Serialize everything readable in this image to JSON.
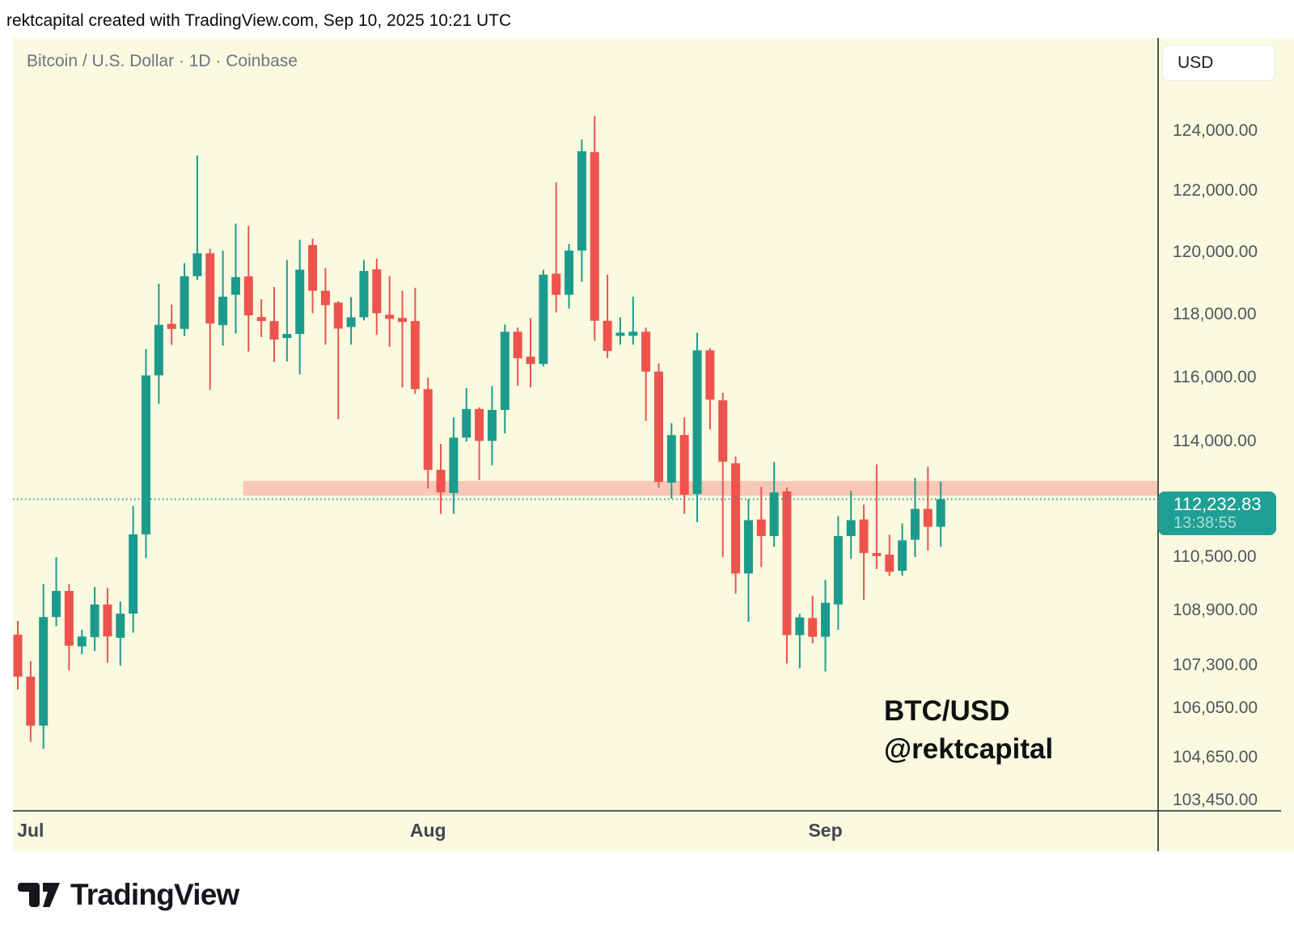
{
  "header": {
    "caption": "rektcapital created with TradingView.com, Sep 10, 2025 10:21 UTC"
  },
  "chart": {
    "title": "Bitcoin / U.S. Dollar · 1D · Coinbase",
    "currency_button_label": "USD",
    "badge_price": "112,232.83",
    "badge_countdown": "13:38:55",
    "watermark_line1": "BTC/USD",
    "watermark_line2": "@rektcapital",
    "colors": {
      "background": "#fafae1",
      "up": "#1c9b8d",
      "down": "#ee534e",
      "support_zone": "#f8c7b6",
      "badge": "#20a094",
      "badge_countdown_text": "#a7dcd5",
      "axis_text": "#50545c",
      "month_text": "#42464e",
      "title_text": "#6e7380",
      "border": "#262b33",
      "watermark_text": "#101113"
    }
  },
  "footer": {
    "logo_text": "TradingView"
  },
  "chart_data": {
    "type": "candlestick",
    "title": "Bitcoin / U.S. Dollar · 1D · Coinbase",
    "symbol": "BTC/USD",
    "interval": "1D",
    "exchange": "Coinbase",
    "scale": "logarithmic",
    "current_price": 112232.83,
    "countdown": "13:38:55",
    "columns": [
      "date",
      "open",
      "high",
      "low",
      "close"
    ],
    "candles": [
      [
        "2025-06-30",
        108190,
        108600,
        106600,
        106970
      ],
      [
        "2025-07-01",
        106970,
        107420,
        105100,
        105560
      ],
      [
        "2025-07-02",
        105560,
        109690,
        104900,
        108710
      ],
      [
        "2025-07-03",
        108710,
        110490,
        108440,
        109480
      ],
      [
        "2025-07-04",
        109480,
        109690,
        107150,
        107870
      ],
      [
        "2025-07-05",
        107850,
        108330,
        107620,
        108140
      ],
      [
        "2025-07-06",
        108120,
        109600,
        107710,
        109080
      ],
      [
        "2025-07-07",
        109080,
        109570,
        107380,
        108140
      ],
      [
        "2025-07-08",
        108100,
        109170,
        107290,
        108810
      ],
      [
        "2025-07-09",
        108810,
        112030,
        108250,
        111170
      ],
      [
        "2025-07-10",
        111170,
        116890,
        110460,
        116060
      ],
      [
        "2025-07-11",
        116060,
        118980,
        115170,
        117660
      ],
      [
        "2025-07-12",
        117690,
        118310,
        117020,
        117530
      ],
      [
        "2025-07-13",
        117530,
        119640,
        117300,
        119220
      ],
      [
        "2025-07-14",
        119220,
        123180,
        119100,
        119960
      ],
      [
        "2025-07-15",
        119960,
        120100,
        115610,
        117700
      ],
      [
        "2025-07-16",
        117650,
        120050,
        117000,
        118560
      ],
      [
        "2025-07-17",
        118620,
        120930,
        117380,
        119190
      ],
      [
        "2025-07-18",
        119215,
        120850,
        116810,
        117960
      ],
      [
        "2025-07-19",
        117910,
        118480,
        117270,
        117780
      ],
      [
        "2025-07-20",
        117780,
        118870,
        116480,
        117190
      ],
      [
        "2025-07-21",
        117240,
        119740,
        116500,
        117370
      ],
      [
        "2025-07-22",
        117370,
        120400,
        116090,
        119430
      ],
      [
        "2025-07-23",
        120230,
        120440,
        118030,
        118750
      ],
      [
        "2025-07-24",
        118750,
        119480,
        117030,
        118290
      ],
      [
        "2025-07-25",
        118370,
        118420,
        114690,
        117540
      ],
      [
        "2025-07-26",
        117590,
        118550,
        117030,
        117900
      ],
      [
        "2025-07-27",
        117900,
        119740,
        117800,
        119390
      ],
      [
        "2025-07-28",
        119440,
        119790,
        117340,
        118030
      ],
      [
        "2025-07-29",
        117980,
        119220,
        116960,
        117850
      ],
      [
        "2025-07-30",
        117880,
        118750,
        115680,
        117750
      ],
      [
        "2025-07-31",
        117780,
        118850,
        115480,
        115630
      ],
      [
        "2025-08-01",
        115630,
        115990,
        112560,
        113130
      ],
      [
        "2025-08-02",
        113130,
        113930,
        111790,
        112440
      ],
      [
        "2025-08-03",
        112420,
        114750,
        111790,
        114120
      ],
      [
        "2025-08-04",
        114120,
        115670,
        114000,
        115010
      ],
      [
        "2025-08-05",
        115010,
        115060,
        112820,
        114020
      ],
      [
        "2025-08-06",
        114020,
        115720,
        113270,
        114980
      ],
      [
        "2025-08-07",
        114980,
        117670,
        114250,
        117440
      ],
      [
        "2025-08-08",
        117440,
        117570,
        115730,
        116600
      ],
      [
        "2025-08-09",
        116650,
        117880,
        115680,
        116420
      ],
      [
        "2025-08-10",
        116420,
        119430,
        116340,
        119270
      ],
      [
        "2025-08-11",
        119300,
        122290,
        118050,
        118620
      ],
      [
        "2025-08-12",
        118620,
        120260,
        118180,
        120050
      ],
      [
        "2025-08-13",
        120050,
        123720,
        119040,
        123320
      ],
      [
        "2025-08-14",
        123290,
        124510,
        117150,
        117790
      ],
      [
        "2025-08-15",
        117790,
        119270,
        116600,
        116830
      ],
      [
        "2025-08-16",
        117310,
        117900,
        117030,
        117410
      ],
      [
        "2025-08-17",
        117310,
        118560,
        117030,
        117440
      ],
      [
        "2025-08-18",
        117440,
        117570,
        114640,
        116180
      ],
      [
        "2025-08-19",
        116180,
        116440,
        112590,
        112760
      ],
      [
        "2025-08-20",
        112740,
        114570,
        112250,
        114200
      ],
      [
        "2025-08-21",
        114200,
        114750,
        111790,
        112370
      ],
      [
        "2025-08-22",
        112390,
        117410,
        111540,
        116850
      ],
      [
        "2025-08-23",
        116850,
        116920,
        114370,
        115300
      ],
      [
        "2025-08-24",
        115280,
        115510,
        110490,
        113380
      ],
      [
        "2025-08-25",
        113330,
        113540,
        109400,
        110000
      ],
      [
        "2025-08-26",
        110000,
        112240,
        108570,
        111600
      ],
      [
        "2025-08-27",
        111620,
        112610,
        110190,
        111120
      ],
      [
        "2025-08-28",
        111120,
        113370,
        110800,
        112440
      ],
      [
        "2025-08-29",
        112470,
        112590,
        107350,
        108180
      ],
      [
        "2025-08-30",
        108180,
        108810,
        107210,
        108700
      ],
      [
        "2025-08-31",
        108680,
        109340,
        107940,
        108130
      ],
      [
        "2025-09-01",
        108130,
        109810,
        107120,
        109130
      ],
      [
        "2025-09-02",
        109080,
        111720,
        108340,
        111120
      ],
      [
        "2025-09-03",
        111120,
        112490,
        110440,
        111600
      ],
      [
        "2025-09-04",
        111620,
        112070,
        109220,
        110610
      ],
      [
        "2025-09-05",
        110610,
        113300,
        110130,
        110520
      ],
      [
        "2025-09-06",
        110560,
        111160,
        109930,
        110050
      ],
      [
        "2025-09-07",
        110080,
        111500,
        109930,
        110990
      ],
      [
        "2025-09-08",
        111010,
        112880,
        110490,
        111940
      ],
      [
        "2025-09-09",
        111940,
        113220,
        110680,
        111400
      ],
      [
        "2025-09-10",
        111400,
        112760,
        110800,
        112232.83
      ]
    ],
    "y_axis_ticks": [
      {
        "label": "124,000.00",
        "price": 124000
      },
      {
        "label": "122,000.00",
        "price": 122000
      },
      {
        "label": "120,000.00",
        "price": 120000
      },
      {
        "label": "118,000.00",
        "price": 118000
      },
      {
        "label": "116,000.00",
        "price": 116000
      },
      {
        "label": "114,000.00",
        "price": 114000
      },
      {
        "label": "110,500.00",
        "price": 110500
      },
      {
        "label": "108,900.00",
        "price": 108900
      },
      {
        "label": "107,300.00",
        "price": 107300
      },
      {
        "label": "106,050.00",
        "price": 106050
      },
      {
        "label": "104,650.00",
        "price": 104650
      },
      {
        "label": "103,450.00",
        "price": 103450
      }
    ],
    "x_axis_month_labels": [
      {
        "label": "Jul",
        "date": "2025-07-01"
      },
      {
        "label": "Aug",
        "date": "2025-08-01"
      },
      {
        "label": "Sep",
        "date": "2025-09-01"
      }
    ],
    "support_zone": {
      "price_top": 112790,
      "price_bottom": 112340,
      "start_date": "2025-07-18"
    },
    "legend_position": "none",
    "grid": false
  }
}
